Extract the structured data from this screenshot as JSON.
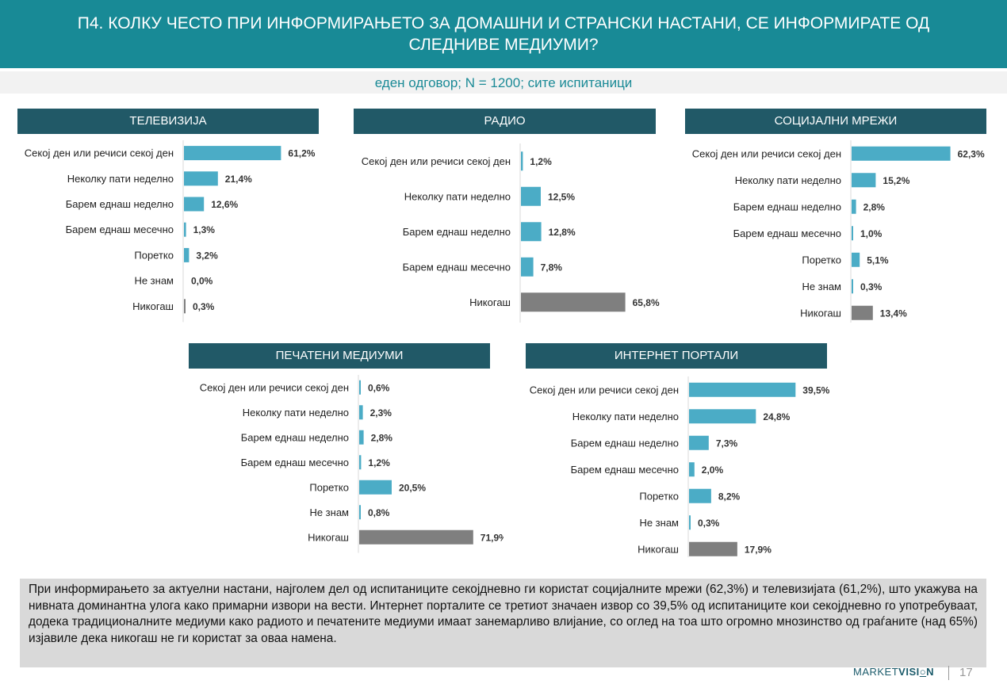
{
  "title": "П4. КОЛКУ ЧЕСТО ПРИ ИНФОРМИРАЊЕТО ЗА ДОМАШНИ И СТРАНСКИ НАСТАНИ, СЕ ИНФОРМИРАТЕ ОД СЛЕДНИВЕ МЕДИУМИ?",
  "subtitle": "еден одговор; N = 1200; сите испитаници",
  "colors": {
    "primary_bar": "#4bacc6",
    "never_bar": "#7f7f7f",
    "header": "#215967",
    "title_bg": "#188a96"
  },
  "chart_data": [
    {
      "type": "bar",
      "title": "ТЕЛЕВИЗИЈА",
      "categories": [
        "Секој ден или речиси секој ден",
        "Неколку пати неделно",
        "Барем еднаш неделно",
        "Барем еднаш месечно",
        "Поретко",
        "Не знам",
        "Никогаш"
      ],
      "values": [
        61.2,
        21.4,
        12.6,
        1.3,
        3.2,
        0.0,
        0.3
      ],
      "labels": [
        "61,2%",
        "21,4%",
        "12,6%",
        "1,3%",
        "3,2%",
        "0,0%",
        "0,3%"
      ],
      "xlim": [
        0,
        100
      ]
    },
    {
      "type": "bar",
      "title": "РАДИО",
      "categories": [
        "Секој ден или речиси секој ден",
        "Неколку пати неделно",
        "Барем еднаш неделно",
        "Барем еднаш месечно",
        "Никогаш"
      ],
      "values": [
        1.2,
        12.5,
        12.8,
        7.8,
        65.8
      ],
      "labels": [
        "1,2%",
        "12,5%",
        "12,8%",
        "7,8%",
        "65,8%"
      ],
      "xlim": [
        0,
        100
      ]
    },
    {
      "type": "bar",
      "title": "СОЦИЈАЛНИ МРЕЖИ",
      "categories": [
        "Секој ден или речиси секој ден",
        "Неколку пати неделно",
        "Барем еднаш неделно",
        "Барем еднаш месечно",
        "Поретко",
        "Не знам",
        "Никогаш"
      ],
      "values": [
        62.3,
        15.2,
        2.8,
        1.0,
        5.1,
        0.3,
        13.4
      ],
      "labels": [
        "62,3%",
        "15,2%",
        "2,8%",
        "1,0%",
        "5,1%",
        "0,3%",
        "13,4%"
      ],
      "xlim": [
        0,
        100
      ]
    },
    {
      "type": "bar",
      "title": "ПЕЧАТЕНИ МЕДИУМИ",
      "categories": [
        "Секој ден или речиси секој ден",
        "Неколку пати неделно",
        "Барем еднаш неделно",
        "Барем еднаш месечно",
        "Поретко",
        "Не знам",
        "Никогаш"
      ],
      "values": [
        0.6,
        2.3,
        2.8,
        1.2,
        20.5,
        0.8,
        71.9
      ],
      "labels": [
        "0,6%",
        "2,3%",
        "2,8%",
        "1,2%",
        "20,5%",
        "0,8%",
        "71,9%"
      ],
      "xlim": [
        0,
        100
      ]
    },
    {
      "type": "bar",
      "title": "ИНТЕРНЕТ ПОРТАЛИ",
      "categories": [
        "Секој ден или речиси секој ден",
        "Неколку пати неделно",
        "Барем еднаш неделно",
        "Барем еднаш месечно",
        "Поретко",
        "Не знам",
        "Никогаш"
      ],
      "values": [
        39.5,
        24.8,
        7.3,
        2.0,
        8.2,
        0.3,
        17.9
      ],
      "labels": [
        "39,5%",
        "24,8%",
        "7,3%",
        "2,0%",
        "8,2%",
        "0,3%",
        "17,9%"
      ],
      "xlim": [
        0,
        100
      ]
    }
  ],
  "summary": "При информирањето за актуелни настани, најголем дел од испитаниците секојдневно ги користат социјалните мрежи (62,3%) и телевизијата (61,2%), што укажува на нивната доминантна улога како примарни извори на вести. Интернет порталите се третиот значаен извор со 39,5% од испитаниците кои секојдневно го употребуваат, додека традиционалните медиуми како радиото и печатените медиуми имаат занемарливо влијание, со оглед на тоа што огромно мнозинство од граѓаните (над 65%) изјавиле дека никогаш не ги користат за оваа намена.",
  "logo": {
    "part1": "MARKET",
    "part2": "VISI",
    "part3": "N"
  },
  "page_number": "17"
}
